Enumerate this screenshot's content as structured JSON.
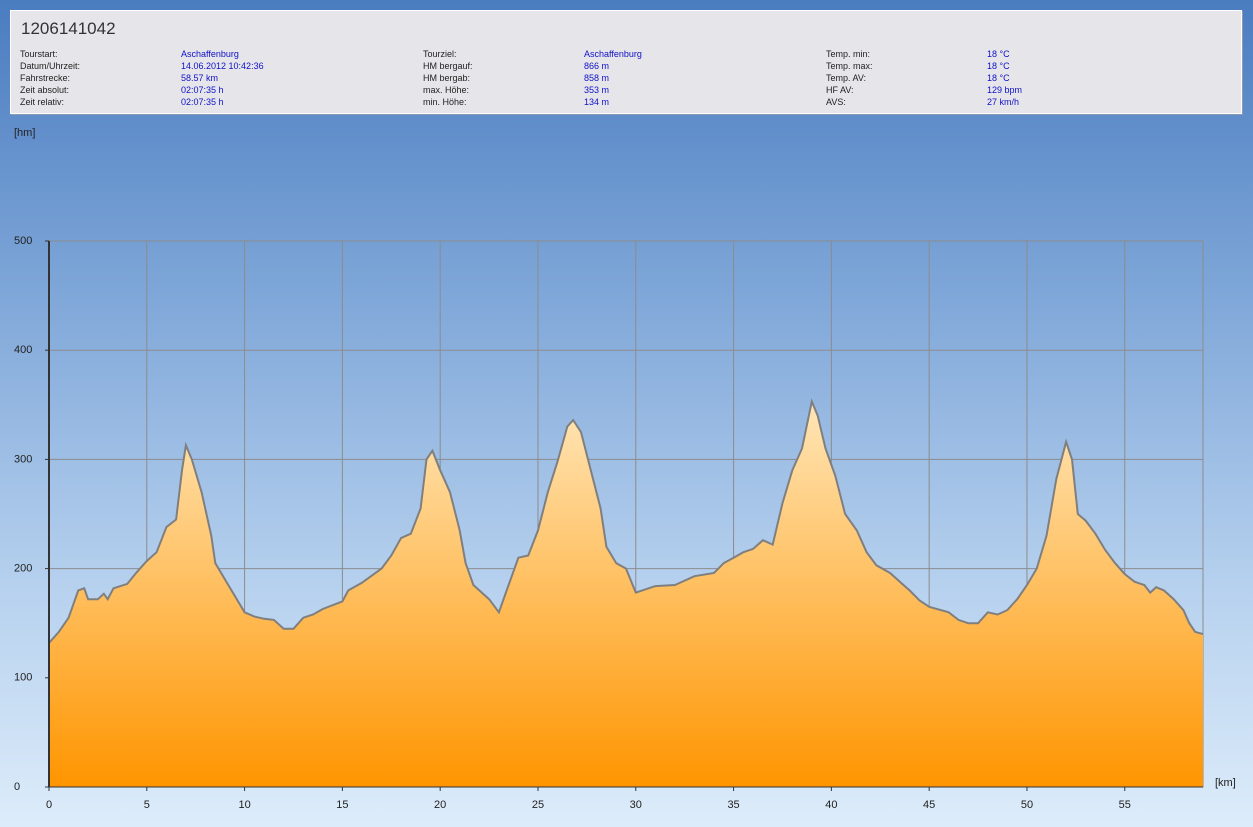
{
  "chart_data": {
    "type": "area",
    "title": "1206141042",
    "stats": [
      [
        {
          "label": "Tourstart:",
          "value": "Aschaffenburg"
        },
        {
          "label": "Datum/Uhrzeit:",
          "value": "14.06.2012 10:42:36"
        },
        {
          "label": "Fahrstrecke:",
          "value": "58.57 km"
        },
        {
          "label": "Zeit absolut:",
          "value": "02:07:35 h"
        },
        {
          "label": "Zeit relativ:",
          "value": "02:07:35 h"
        }
      ],
      [
        {
          "label": "Tourziel:",
          "value": "Aschaffenburg"
        },
        {
          "label": "HM bergauf:",
          "value": "866 m"
        },
        {
          "label": "HM bergab:",
          "value": "858 m"
        },
        {
          "label": "max. Höhe:",
          "value": "353 m"
        },
        {
          "label": "min. Höhe:",
          "value": "134 m"
        }
      ],
      [
        {
          "label": "Temp. min:",
          "value": "18 °C"
        },
        {
          "label": "Temp. max:",
          "value": "18 °C"
        },
        {
          "label": "Temp. AV:",
          "value": "18 °C"
        },
        {
          "label": "HF AV:",
          "value": "129 bpm"
        },
        {
          "label": "AVS:",
          "value": "27 km/h"
        }
      ]
    ],
    "y_label": "[hm]",
    "x_label": "[km]",
    "x": [
      0,
      0.5,
      1,
      1.5,
      1.8,
      2,
      2.5,
      2.8,
      3,
      3.3,
      4,
      4.5,
      5,
      5.5,
      6,
      6.5,
      6.8,
      7,
      7.3,
      7.8,
      8.3,
      8.5,
      9,
      9.5,
      10,
      10.5,
      11,
      11.5,
      12,
      12.5,
      13,
      13.5,
      14,
      15,
      15.3,
      16,
      17,
      17.5,
      18,
      18.5,
      19,
      19.3,
      19.6,
      20,
      20.5,
      21,
      21.3,
      21.7,
      22,
      22.5,
      23,
      23.5,
      24,
      24.5,
      25,
      25.5,
      26,
      26.5,
      26.8,
      27.2,
      27.7,
      28.2,
      28.5,
      29,
      29.5,
      30,
      30.5,
      31,
      32,
      33,
      34,
      34.5,
      35,
      35.5,
      36,
      36.5,
      37,
      37.5,
      38,
      38.5,
      39,
      39.3,
      39.7,
      40.2,
      40.7,
      41.3,
      41.8,
      42.3,
      43,
      43.5,
      44,
      44.5,
      45,
      46,
      46.5,
      47,
      47.5,
      48,
      48.5,
      49,
      49.5,
      50,
      50.5,
      51,
      51.5,
      52,
      52.3,
      52.6,
      53,
      53.5,
      54,
      54.5,
      55,
      55.5,
      56,
      56.3,
      56.6,
      57,
      57.5,
      58,
      58.3,
      58.6,
      59
    ],
    "series": [
      {
        "color": "#7f7f7f",
        "values": [
          132,
          142,
          155,
          180,
          182,
          172,
          172,
          177,
          172,
          182,
          186,
          197,
          207,
          215,
          238,
          245,
          290,
          313,
          300,
          270,
          230,
          205,
          190,
          175,
          160,
          156,
          154,
          153,
          145,
          145,
          155,
          158,
          163,
          170,
          180,
          187,
          200,
          212,
          228,
          232,
          255,
          300,
          308,
          290,
          270,
          235,
          205,
          185,
          180,
          172,
          160,
          185,
          210,
          212,
          235,
          270,
          298,
          330,
          336,
          325,
          290,
          255,
          220,
          205,
          200,
          178,
          181,
          184,
          185,
          193,
          196,
          205,
          210,
          215,
          218,
          226,
          222,
          260,
          290,
          310,
          353,
          340,
          310,
          285,
          250,
          235,
          215,
          203,
          196,
          188,
          180,
          171,
          165,
          160,
          153,
          150,
          150,
          160,
          158,
          162,
          172,
          185,
          200,
          230,
          282,
          316,
          300,
          250,
          244,
          232,
          217,
          205,
          195,
          188,
          185,
          178,
          183,
          180,
          172,
          162,
          150,
          142,
          140
        ]
      }
    ],
    "xlim": [
      0,
      59
    ],
    "ylim": [
      0,
      500
    ],
    "xticks": [
      0,
      5,
      10,
      15,
      20,
      25,
      30,
      35,
      40,
      45,
      50,
      55
    ],
    "yticks": [
      0,
      100,
      200,
      300,
      400,
      500
    ],
    "grid": true
  }
}
